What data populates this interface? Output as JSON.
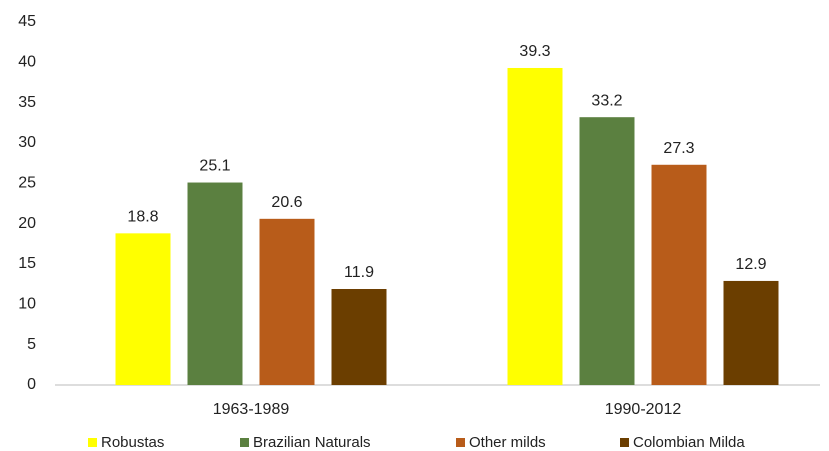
{
  "chart_data": {
    "type": "bar",
    "categories": [
      "1963-1989",
      "1990-2012"
    ],
    "series": [
      {
        "name": "Robustas",
        "color": "#ffff00",
        "values": [
          18.8,
          39.3
        ]
      },
      {
        "name": "Brazilian Naturals",
        "color": "#5b8040",
        "values": [
          25.1,
          33.2
        ]
      },
      {
        "name": "Other milds",
        "color": "#b85c1a",
        "values": [
          20.6,
          27.3
        ]
      },
      {
        "name": "Colombian Milda",
        "color": "#6b3e00",
        "values": [
          11.9,
          12.9
        ]
      }
    ],
    "ylim": [
      0,
      45
    ],
    "yticks": [
      0,
      5,
      10,
      15,
      20,
      25,
      30,
      35,
      40,
      45
    ],
    "grid": false,
    "legend": "bottom"
  }
}
